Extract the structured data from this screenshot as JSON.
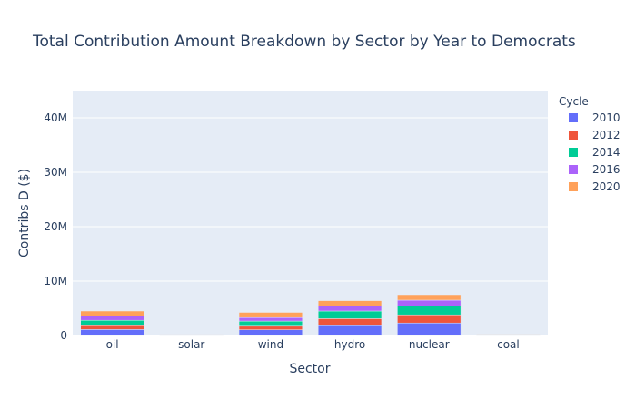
{
  "chart_data": {
    "type": "bar",
    "stacked": true,
    "title": "Total Contribution Amount Breakdown by Sector by Year to Democrats",
    "xlabel": "Sector",
    "ylabel": "Contribs D ($)",
    "categories": [
      "oil",
      "solar",
      "wind",
      "hydro",
      "nuclear",
      "coal"
    ],
    "ylim": [
      0,
      45000000
    ],
    "yticks": [
      0,
      10000000,
      20000000,
      30000000,
      40000000
    ],
    "ytick_labels": [
      "0",
      "10M",
      "20M",
      "30M",
      "40M"
    ],
    "grid": true,
    "legend_title": "Cycle",
    "legend_position": "right",
    "series": [
      {
        "name": "2010",
        "color": "#636efa",
        "values": [
          1100000,
          50000,
          1050000,
          1800000,
          2300000,
          100000
        ]
      },
      {
        "name": "2012",
        "color": "#ef553b",
        "values": [
          700000,
          30000,
          650000,
          1300000,
          1500000,
          50000
        ]
      },
      {
        "name": "2014",
        "color": "#00cc96",
        "values": [
          1000000,
          40000,
          950000,
          1400000,
          1600000,
          50000
        ]
      },
      {
        "name": "2016",
        "color": "#ab63fa",
        "values": [
          750000,
          30000,
          650000,
          900000,
          1100000,
          40000
        ]
      },
      {
        "name": "2020",
        "color": "#ffa15a",
        "values": [
          950000,
          30000,
          950000,
          1000000,
          1000000,
          30000
        ]
      }
    ]
  }
}
